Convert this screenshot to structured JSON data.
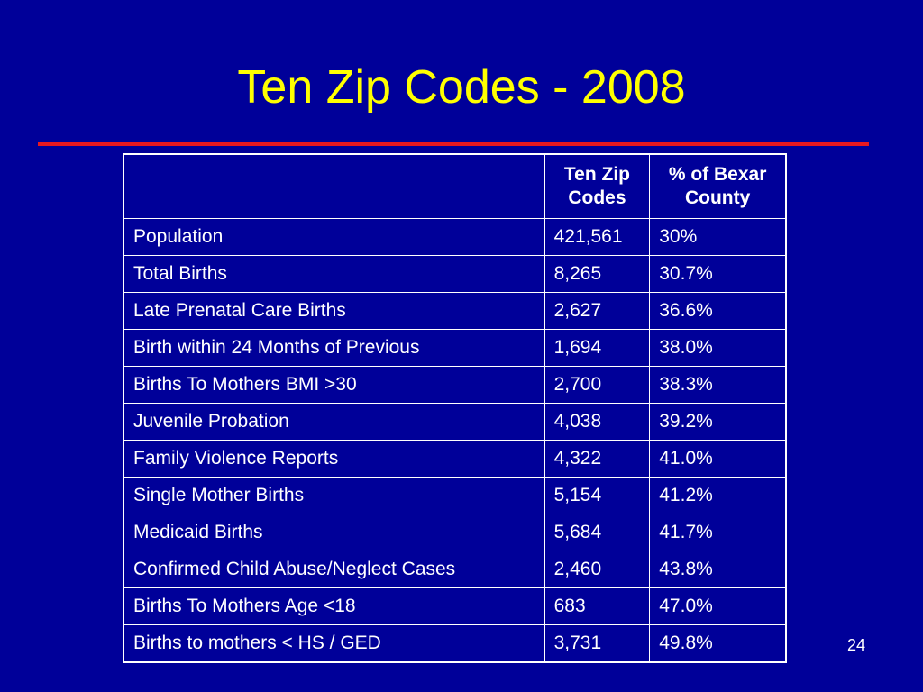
{
  "slide": {
    "title": "Ten Zip Codes - 2008",
    "page_number": "24"
  },
  "colors": {
    "background": "#000099",
    "title": "#ffff00",
    "rule": "#e8191f",
    "table_text": "#ffffff"
  },
  "table": {
    "headers": [
      "",
      "Ten Zip Codes",
      "% of Bexar County"
    ],
    "rows": [
      {
        "label": "Population",
        "count": "421,561",
        "percent": "30%"
      },
      {
        "label": "Total Births",
        "count": "8,265",
        "percent": "30.7%"
      },
      {
        "label": "Late Prenatal Care Births",
        "count": "2,627",
        "percent": "36.6%"
      },
      {
        "label": "Birth within 24 Months of Previous",
        "count": "1,694",
        "percent": "38.0%"
      },
      {
        "label": "Births To Mothers BMI >30",
        "count": "2,700",
        "percent": "38.3%"
      },
      {
        "label": "Juvenile Probation",
        "count": "4,038",
        "percent": "39.2%"
      },
      {
        "label": "Family Violence Reports",
        "count": "4,322",
        "percent": "41.0%"
      },
      {
        "label": "Single Mother Births",
        "count": "5,154",
        "percent": "41.2%"
      },
      {
        "label": "Medicaid Births",
        "count": "5,684",
        "percent": "41.7%"
      },
      {
        "label": "Confirmed Child Abuse/Neglect Cases",
        "count": "2,460",
        "percent": "43.8%"
      },
      {
        "label": "Births To Mothers Age <18",
        "count": "683",
        "percent": "47.0%"
      },
      {
        "label": "Births to mothers < HS / GED",
        "count": "3,731",
        "percent": "49.8%"
      }
    ]
  }
}
